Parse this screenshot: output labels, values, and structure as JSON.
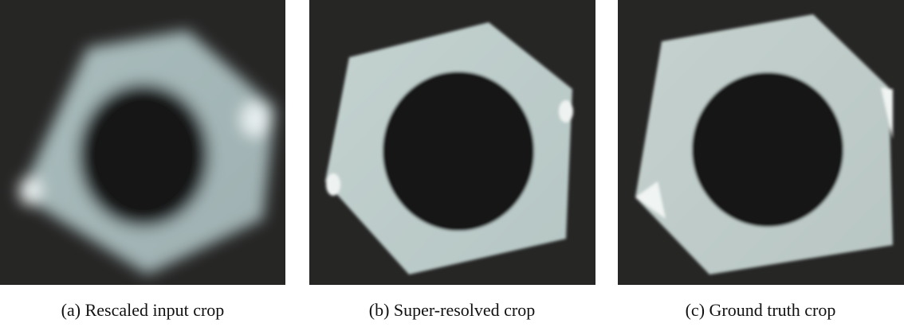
{
  "figure": {
    "panels": [
      {
        "caption": "(a) Rescaled input crop"
      },
      {
        "caption": "(b) Super-resolved crop"
      },
      {
        "caption": "(c) Ground truth crop"
      }
    ]
  }
}
